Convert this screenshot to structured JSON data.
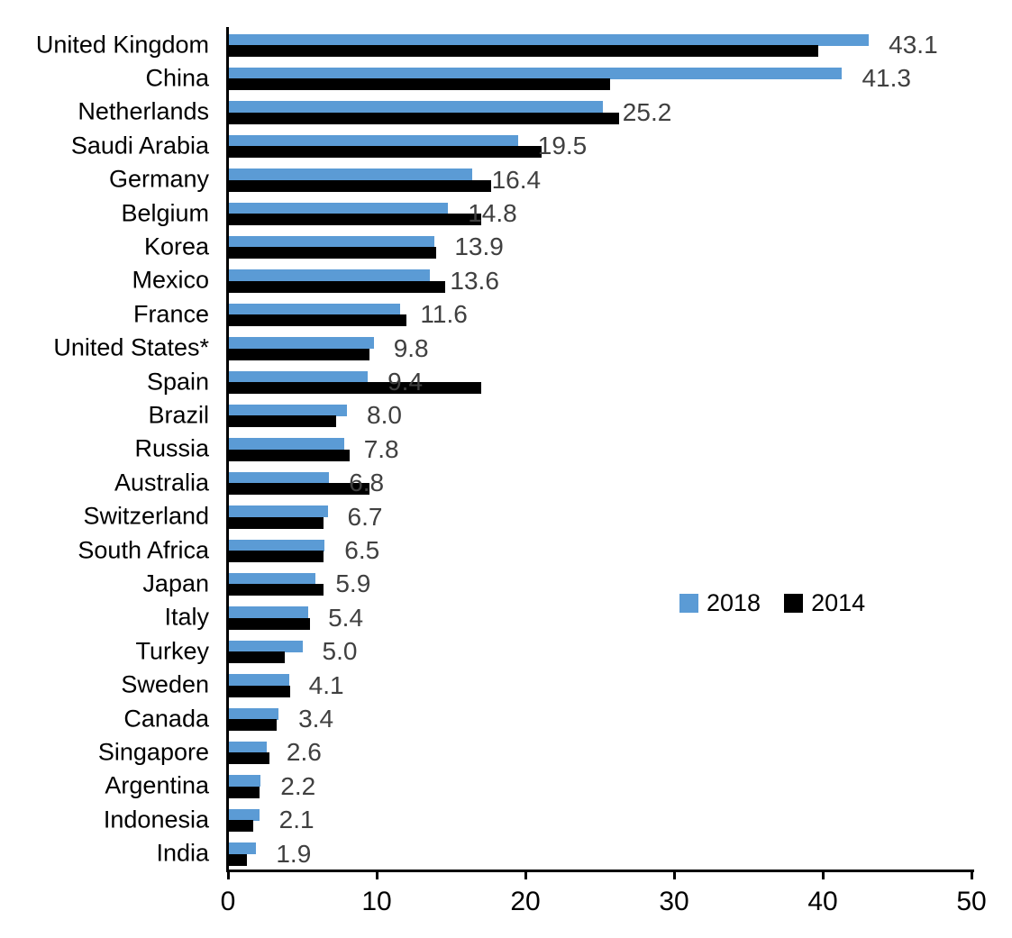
{
  "chart_data": {
    "type": "bar",
    "orientation": "horizontal",
    "title": "",
    "xlabel": "",
    "ylabel": "",
    "xlim": [
      0,
      50
    ],
    "x_ticks": [
      "0",
      "10",
      "20",
      "30",
      "40",
      "50"
    ],
    "grid": false,
    "legend_position": "middle-right",
    "categories": [
      "United Kingdom",
      "China",
      "Netherlands",
      "Saudi Arabia",
      "Germany",
      "Belgium",
      "Korea",
      "Mexico",
      "France",
      "United States*",
      "Spain",
      "Brazil",
      "Russia",
      "Australia",
      "Switzerland",
      "South Africa",
      "Japan",
      "Italy",
      "Turkey",
      "Sweden",
      "Canada",
      "Singapore",
      "Argentina",
      "Indonesia",
      "India"
    ],
    "series": [
      {
        "name": "2018",
        "color": "#5B9BD5",
        "values": [
          43.1,
          41.3,
          25.2,
          19.5,
          16.4,
          14.8,
          13.9,
          13.6,
          11.6,
          9.8,
          9.4,
          8.0,
          7.8,
          6.8,
          6.7,
          6.5,
          5.9,
          5.4,
          5.0,
          4.1,
          3.4,
          2.6,
          2.2,
          2.1,
          1.9
        ]
      },
      {
        "name": "2014",
        "color": "#000000",
        "values": [
          39.7,
          25.7,
          26.3,
          21.1,
          17.7,
          17.0,
          14.0,
          14.6,
          12.0,
          9.5,
          17.0,
          7.3,
          8.2,
          9.5,
          6.4,
          6.4,
          6.4,
          5.5,
          3.8,
          4.2,
          3.3,
          2.8,
          2.1,
          1.7,
          1.3
        ]
      }
    ],
    "data_labels": [
      "43.1",
      "41.3",
      "25.2",
      "19.5",
      "16.4",
      "14.8",
      "13.9",
      "13.6",
      "11.6",
      "9.8",
      "9.4",
      "8.0",
      "7.8",
      "6.8",
      "6.7",
      "6.5",
      "5.9",
      "5.4",
      "5.0",
      "4.1",
      "3.4",
      "2.6",
      "2.2",
      "2.1",
      "1.9"
    ],
    "data_label_series": "2018",
    "data_label_color": "#404040"
  },
  "legend": {
    "items": [
      {
        "label": "2018",
        "color": "#5B9BD5"
      },
      {
        "label": "2014",
        "color": "#000000"
      }
    ]
  }
}
